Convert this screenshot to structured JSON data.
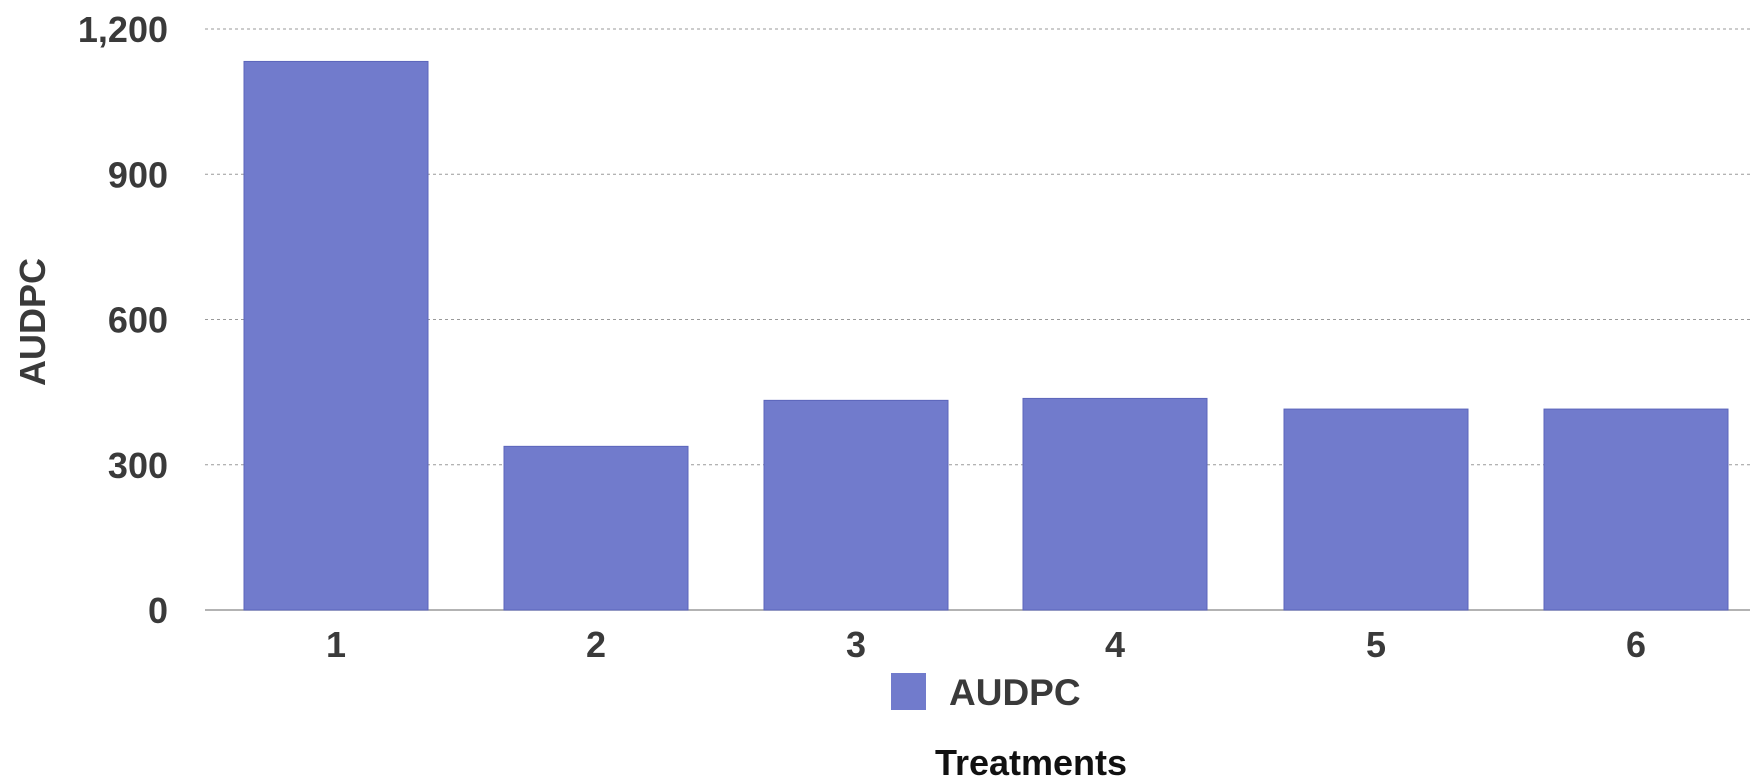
{
  "chart_data": {
    "type": "bar",
    "categories": [
      "1",
      "2",
      "3",
      "4",
      "5",
      "6"
    ],
    "series": [
      {
        "name": "AUDPC",
        "values": [
          1133,
          338,
          433,
          437,
          415,
          415
        ],
        "color": "#717bcc"
      }
    ],
    "ylabel": "AUDPC",
    "xlabel": "Treatments",
    "ylim": [
      0,
      1200
    ],
    "yticks": [
      0,
      300,
      600,
      900,
      1200
    ],
    "ytick_labels": [
      "0",
      "300",
      "600",
      "900",
      "1,200"
    ],
    "grid": true,
    "legend_position": "bottom"
  }
}
